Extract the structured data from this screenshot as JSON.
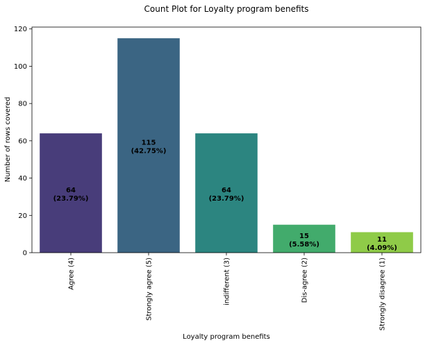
{
  "chart_data": {
    "type": "bar",
    "title": "Count Plot for Loyalty program benefits",
    "xlabel": "Loyalty program benefits",
    "ylabel": "Number of rows covered",
    "categories": [
      "Agree (4)",
      "Strongly agree (5)",
      "indifferent (3)",
      "Dis-agree (2)",
      "Strongly disagree (1)"
    ],
    "values": [
      64,
      115,
      64,
      15,
      11
    ],
    "percent_labels": [
      "(23.79%)",
      "(42.75%)",
      "(23.79%)",
      "(5.58%)",
      "(4.09%)"
    ],
    "colors": [
      "#483d7a",
      "#3b6583",
      "#2c8580",
      "#42ab6c",
      "#8fcb48"
    ],
    "ylim": [
      0,
      121
    ],
    "yticks": [
      0,
      20,
      40,
      60,
      80,
      100,
      120
    ],
    "grid": false,
    "legend": "none"
  }
}
